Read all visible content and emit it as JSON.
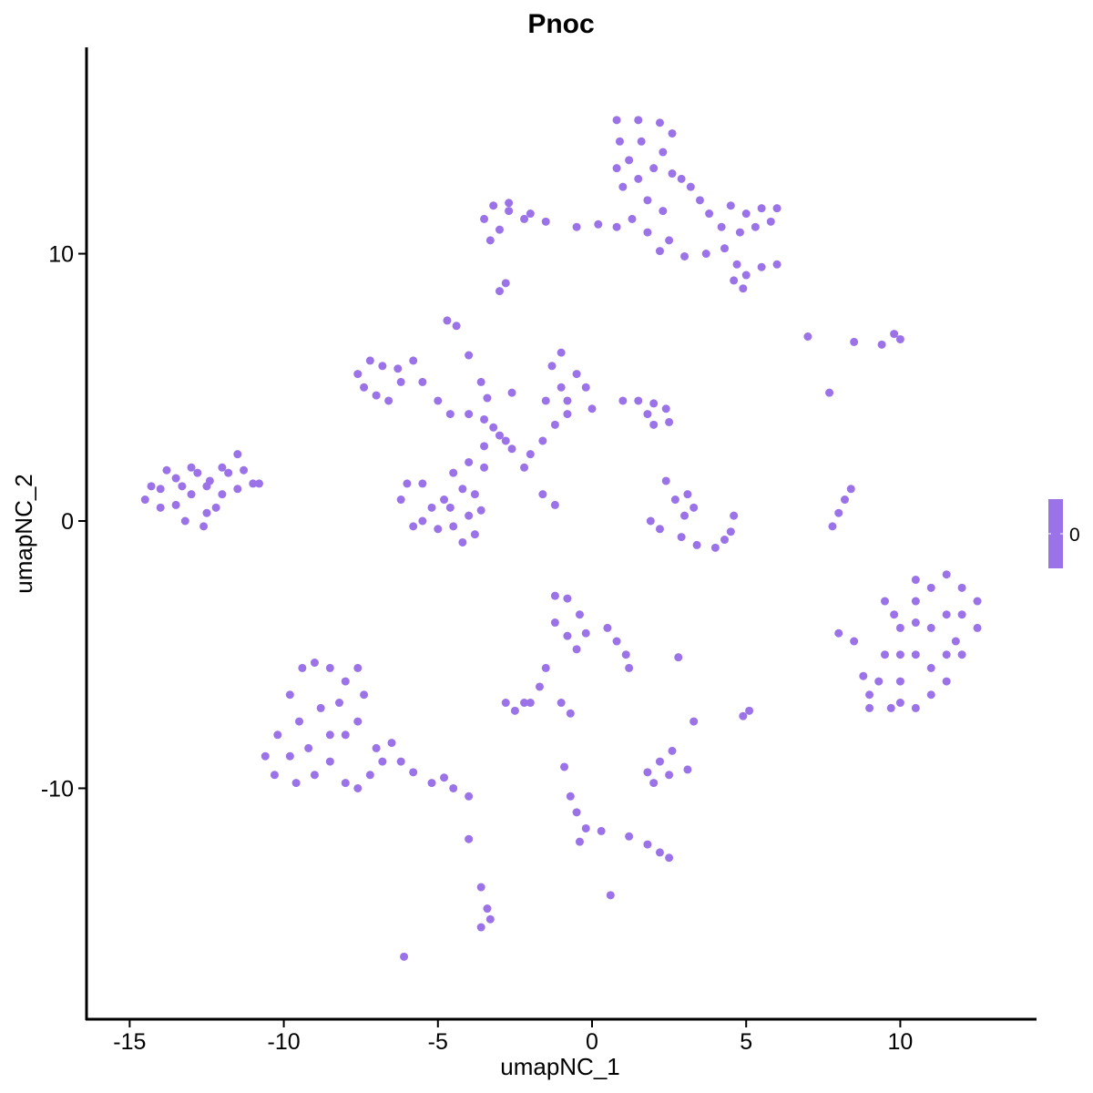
{
  "chart_data": {
    "type": "scatter",
    "title": "Pnoc",
    "xlabel": "umapNC_1",
    "ylabel": "umapNC_2",
    "xlim": [
      -16.4,
      14.42
    ],
    "ylim": [
      -18.64,
      17.72
    ],
    "xticks": [
      -15,
      -10,
      -5,
      0,
      5,
      10
    ],
    "yticks": [
      -10,
      0,
      10
    ],
    "xtick_labels": [
      "-15",
      "-10",
      "-5",
      "0",
      "5",
      "10"
    ],
    "ytick_labels": [
      "-10",
      "0",
      "10"
    ],
    "grid": false,
    "point_color": "#9b72e8",
    "legend": {
      "position": "right",
      "type": "colorbar",
      "label": "0",
      "color": "#9b72e8"
    },
    "points": [
      [
        -14.5,
        0.8
      ],
      [
        -14,
        1.2
      ],
      [
        -13.5,
        0.6
      ],
      [
        -13.5,
        1.6
      ],
      [
        -13,
        1
      ],
      [
        -13,
        2
      ],
      [
        -12.5,
        0.3
      ],
      [
        -12.5,
        1.3
      ],
      [
        -12,
        1
      ],
      [
        -12,
        2
      ],
      [
        -11.5,
        1.2
      ],
      [
        -11.5,
        2.5
      ],
      [
        -11,
        1.4
      ],
      [
        -14,
        0.5
      ],
      [
        -13.2,
        0
      ],
      [
        -12.8,
        1.8
      ],
      [
        -12.2,
        0.5
      ],
      [
        -11.8,
        1.8
      ],
      [
        -13.8,
        1.9
      ],
      [
        -14.3,
        1.3
      ],
      [
        -12.6,
        -0.2
      ],
      [
        -11.3,
        1.9
      ],
      [
        -10.8,
        1.4
      ],
      [
        -13.3,
        1.3
      ],
      [
        -12.4,
        1.5
      ],
      [
        0.8,
        15
      ],
      [
        1.5,
        15
      ],
      [
        2.2,
        14.9
      ],
      [
        2.6,
        14.5
      ],
      [
        0.9,
        14.2
      ],
      [
        1.6,
        14.2
      ],
      [
        2.3,
        13.8
      ],
      [
        1.2,
        13.5
      ],
      [
        2,
        13.2
      ],
      [
        2.6,
        13
      ],
      [
        1.5,
        12.8
      ],
      [
        1,
        12.5
      ],
      [
        2.9,
        12.8
      ],
      [
        3.2,
        12.5
      ],
      [
        3.5,
        12
      ],
      [
        3.8,
        11.5
      ],
      [
        4.5,
        11.8
      ],
      [
        5,
        11.5
      ],
      [
        5.5,
        11.7
      ],
      [
        6,
        11.7
      ],
      [
        4.2,
        11
      ],
      [
        4.8,
        10.8
      ],
      [
        5.3,
        11
      ],
      [
        5.8,
        11.2
      ],
      [
        4.3,
        10.2
      ],
      [
        4.7,
        9.6
      ],
      [
        5,
        9.2
      ],
      [
        5.5,
        9.5
      ],
      [
        6,
        9.6
      ],
      [
        4.6,
        9
      ],
      [
        4.9,
        8.7
      ],
      [
        0.8,
        11
      ],
      [
        1.3,
        11.3
      ],
      [
        1.8,
        10.8
      ],
      [
        2.5,
        10.5
      ],
      [
        2.3,
        11.6
      ],
      [
        -3.2,
        11.8
      ],
      [
        -2.7,
        11.6
      ],
      [
        -2.2,
        11.3
      ],
      [
        -2.7,
        11.9
      ],
      [
        -3.5,
        11.3
      ],
      [
        -3,
        10.9
      ],
      [
        -1.5,
        11.2
      ],
      [
        -0.5,
        11
      ],
      [
        0.2,
        11.1
      ],
      [
        -2,
        11.5
      ],
      [
        -3.3,
        10.5
      ],
      [
        2.2,
        10.1
      ],
      [
        3,
        9.9
      ],
      [
        3.7,
        10
      ],
      [
        1.8,
        12
      ],
      [
        0.8,
        13.2
      ],
      [
        -3,
        8.6
      ],
      [
        -2.8,
        8.9
      ],
      [
        -7.6,
        5.5
      ],
      [
        -7.2,
        6
      ],
      [
        -6.8,
        5.8
      ],
      [
        -6.3,
        5.7
      ],
      [
        -5.8,
        6
      ],
      [
        -7.4,
        5
      ],
      [
        -7,
        4.7
      ],
      [
        -6.6,
        4.5
      ],
      [
        -6.2,
        5.2
      ],
      [
        -5.5,
        5.2
      ],
      [
        -5,
        4.5
      ],
      [
        -4.6,
        4
      ],
      [
        -4,
        4
      ],
      [
        -3.5,
        3.8
      ],
      [
        -3,
        3.2
      ],
      [
        -2.6,
        2.7
      ],
      [
        -2,
        2.5
      ],
      [
        -1.6,
        3
      ],
      [
        -1.2,
        3.6
      ],
      [
        -0.8,
        4
      ],
      [
        0,
        4.2
      ],
      [
        1,
        4.5
      ],
      [
        1.5,
        4.5
      ],
      [
        2,
        4.4
      ],
      [
        2.4,
        4.2
      ],
      [
        2.5,
        3.7
      ],
      [
        2,
        3.6
      ],
      [
        1.8,
        4
      ],
      [
        -1,
        5
      ],
      [
        -1.3,
        5.8
      ],
      [
        -1,
        6.3
      ],
      [
        -0.5,
        5.5
      ],
      [
        -0.2,
        5
      ],
      [
        -0.8,
        4.5
      ],
      [
        -1.5,
        4.5
      ],
      [
        -4.7,
        7.5
      ],
      [
        -4.4,
        7.3
      ],
      [
        -4,
        6.2
      ],
      [
        -3.6,
        5.2
      ],
      [
        -3.4,
        4.6
      ],
      [
        -2.6,
        4.8
      ],
      [
        -2.2,
        2
      ],
      [
        -1.6,
        1
      ],
      [
        -1.2,
        0.6
      ],
      [
        -3.2,
        3.5
      ],
      [
        -2.8,
        3
      ],
      [
        -3.5,
        2.8
      ],
      [
        -4,
        2.2
      ],
      [
        -4.2,
        1.2
      ],
      [
        -4,
        0.2
      ],
      [
        -4.5,
        -0.2
      ],
      [
        -5,
        -0.3
      ],
      [
        -5.5,
        0
      ],
      [
        -6.2,
        0.8
      ],
      [
        -6,
        1.4
      ],
      [
        -5.5,
        1.4
      ],
      [
        -4.8,
        0.8
      ],
      [
        -4.5,
        1.8
      ],
      [
        -3.5,
        2
      ],
      [
        -3.8,
        1
      ],
      [
        -4.6,
        0.5
      ],
      [
        -5.8,
        -0.2
      ],
      [
        -3.8,
        -0.5
      ],
      [
        -4.2,
        -0.8
      ],
      [
        -5.2,
        0.5
      ],
      [
        -3.6,
        0.4
      ],
      [
        2.4,
        1.5
      ],
      [
        3.1,
        1
      ],
      [
        3.3,
        0.5
      ],
      [
        2.9,
        -0.6
      ],
      [
        3.4,
        -0.9
      ],
      [
        4,
        -1
      ],
      [
        4.3,
        -0.7
      ],
      [
        2.2,
        -0.3
      ],
      [
        1.9,
        0
      ],
      [
        3,
        0.2
      ],
      [
        4.5,
        -0.4
      ],
      [
        2.7,
        0.8
      ],
      [
        4.6,
        0.2
      ],
      [
        7.8,
        -0.2
      ],
      [
        8,
        0.3
      ],
      [
        8.2,
        0.8
      ],
      [
        8.4,
        1.2
      ],
      [
        7,
        6.9
      ],
      [
        7.7,
        4.8
      ],
      [
        8.5,
        6.7
      ],
      [
        9.4,
        6.6
      ],
      [
        9.8,
        7
      ],
      [
        10,
        6.8
      ],
      [
        9.5,
        -5
      ],
      [
        10,
        -4
      ],
      [
        10.5,
        -3
      ],
      [
        11,
        -2.5
      ],
      [
        11.5,
        -2
      ],
      [
        12,
        -2.5
      ],
      [
        12.5,
        -3
      ],
      [
        12.5,
        -4
      ],
      [
        12,
        -5
      ],
      [
        11.5,
        -6
      ],
      [
        11,
        -6.5
      ],
      [
        10.5,
        -7
      ],
      [
        9.7,
        -7
      ],
      [
        9,
        -6.5
      ],
      [
        8.8,
        -5.8
      ],
      [
        9.3,
        -6
      ],
      [
        10,
        -6
      ],
      [
        10.5,
        -5
      ],
      [
        11,
        -4
      ],
      [
        11.5,
        -3.5
      ],
      [
        11.8,
        -4.5
      ],
      [
        11,
        -5.5
      ],
      [
        10,
        -5
      ],
      [
        10.5,
        -3.8
      ],
      [
        12,
        -3.5
      ],
      [
        8,
        -4.2
      ],
      [
        8.5,
        -4.5
      ],
      [
        9.5,
        -3
      ],
      [
        10.5,
        -2.2
      ],
      [
        9.8,
        -3.5
      ],
      [
        11.5,
        -5
      ],
      [
        10,
        -6.8
      ],
      [
        9,
        -7
      ],
      [
        -9.8,
        -6.5
      ],
      [
        -9.4,
        -5.5
      ],
      [
        -9,
        -5.3
      ],
      [
        -8.5,
        -5.5
      ],
      [
        -8,
        -6
      ],
      [
        -7.6,
        -5.5
      ],
      [
        -7.4,
        -6.5
      ],
      [
        -7.6,
        -7.5
      ],
      [
        -8,
        -8
      ],
      [
        -8.8,
        -7
      ],
      [
        -9.5,
        -7.5
      ],
      [
        -10.2,
        -8
      ],
      [
        -10.6,
        -8.8
      ],
      [
        -10.3,
        -9.5
      ],
      [
        -9.6,
        -9.8
      ],
      [
        -9,
        -9.5
      ],
      [
        -8.5,
        -9
      ],
      [
        -8,
        -9.8
      ],
      [
        -7.6,
        -10
      ],
      [
        -7.2,
        -9.5
      ],
      [
        -6.8,
        -9
      ],
      [
        -6.2,
        -9
      ],
      [
        -5.8,
        -9.4
      ],
      [
        -5.2,
        -9.8
      ],
      [
        -4.5,
        -10
      ],
      [
        -4,
        -10.3
      ],
      [
        -8.5,
        -8
      ],
      [
        -9.2,
        -8.5
      ],
      [
        -7,
        -8.5
      ],
      [
        -6.5,
        -8.3
      ],
      [
        -9.8,
        -8.8
      ],
      [
        -8.2,
        -6.8
      ],
      [
        -4.8,
        -9.6
      ],
      [
        -4,
        -11.9
      ],
      [
        -1.2,
        -2.8
      ],
      [
        -0.8,
        -2.9
      ],
      [
        -0.4,
        -3.5
      ],
      [
        -1.2,
        -3.8
      ],
      [
        -0.8,
        -4.3
      ],
      [
        -0.2,
        -4.2
      ],
      [
        0.5,
        -4
      ],
      [
        0.8,
        -4.5
      ],
      [
        1.1,
        -5
      ],
      [
        1.2,
        -5.5
      ],
      [
        -0.5,
        -4.8
      ],
      [
        -1.5,
        -5.5
      ],
      [
        -1.7,
        -6.2
      ],
      [
        -2,
        -6.8
      ],
      [
        -2.8,
        -6.8
      ],
      [
        -2.5,
        -7.1
      ],
      [
        -2.2,
        -6.8
      ],
      [
        -1,
        -6.8
      ],
      [
        -0.7,
        -7.2
      ],
      [
        2.8,
        -5.1
      ],
      [
        1.8,
        -9.4
      ],
      [
        2.2,
        -9
      ],
      [
        2.6,
        -8.6
      ],
      [
        2.5,
        -9.5
      ],
      [
        3.1,
        -9.3
      ],
      [
        2,
        -9.8
      ],
      [
        3.3,
        -7.5
      ],
      [
        4.9,
        -7.3
      ],
      [
        5.1,
        -7.1
      ],
      [
        -0.9,
        -9.2
      ],
      [
        -0.7,
        -10.3
      ],
      [
        -0.5,
        -10.9
      ],
      [
        -0.2,
        -11.5
      ],
      [
        -0.4,
        -12
      ],
      [
        0.3,
        -11.6
      ],
      [
        1.2,
        -11.8
      ],
      [
        1.8,
        -12.1
      ],
      [
        2.2,
        -12.4
      ],
      [
        2.5,
        -12.6
      ],
      [
        0.6,
        -14
      ],
      [
        -3.6,
        -13.7
      ],
      [
        -3.4,
        -14.5
      ],
      [
        -3.6,
        -15.2
      ],
      [
        -3.3,
        -14.9
      ],
      [
        -6.1,
        -16.3
      ]
    ]
  }
}
